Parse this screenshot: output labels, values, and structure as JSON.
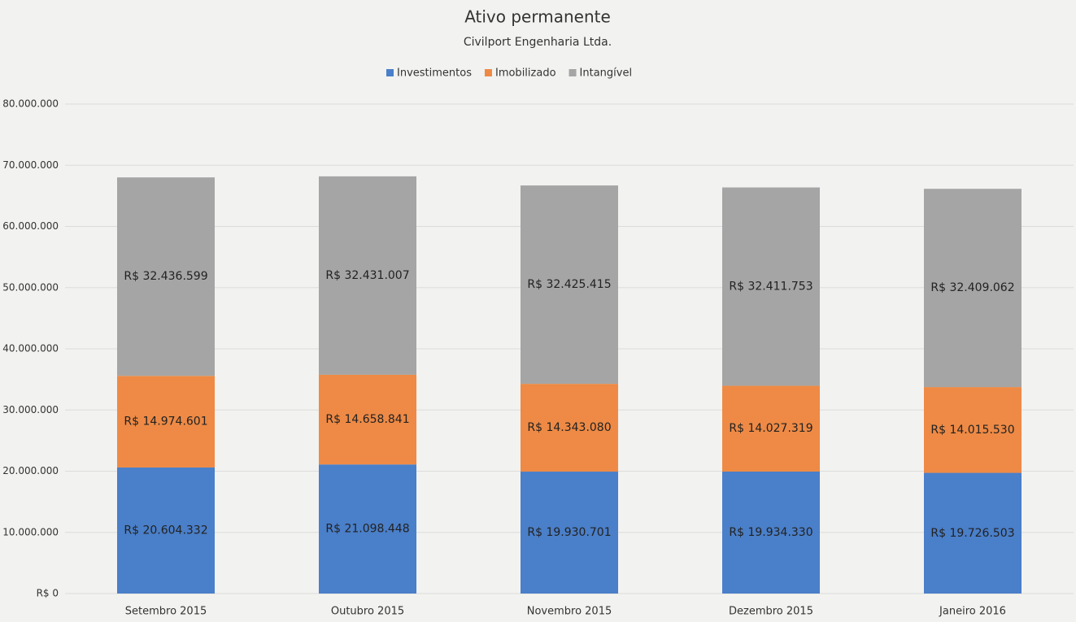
{
  "chart_data": {
    "type": "stacked_bar",
    "title": "Ativo permanente",
    "subtitle": "Civilport Engenharia Ltda.",
    "categories": [
      "Setembro 2015",
      "Outubro 2015",
      "Novembro 2015",
      "Dezembro 2015",
      "Janeiro 2016"
    ],
    "series": [
      {
        "name": "Investimentos",
        "color": "#4a7fc9",
        "values": [
          20604332,
          21098448,
          19930701,
          19934330,
          19726503
        ],
        "value_labels": [
          "R$ 20.604.332",
          "R$ 21.098.448",
          "R$ 19.930.701",
          "R$ 19.934.330",
          "R$ 19.726.503"
        ]
      },
      {
        "name": "Imobilizado",
        "color": "#ee8a45",
        "values": [
          14974601,
          14658841,
          14343080,
          14027319,
          14015530
        ],
        "value_labels": [
          "R$ 14.974.601",
          "R$ 14.658.841",
          "R$ 14.343.080",
          "R$ 14.027.319",
          "R$ 14.015.530"
        ]
      },
      {
        "name": "Intangível",
        "color": "#a5a5a5",
        "values": [
          32436599,
          32431007,
          32425415,
          32411753,
          32409062
        ],
        "value_labels": [
          "R$ 32.436.599",
          "R$ 32.431.007",
          "R$ 32.425.415",
          "R$ 32.411.753",
          "R$ 32.409.062"
        ]
      }
    ],
    "ylim": [
      0,
      80000000
    ],
    "yticks": [
      {
        "value": 0,
        "label": "R$ 0"
      },
      {
        "value": 10000000,
        "label": "R$ 10.000.000"
      },
      {
        "value": 20000000,
        "label": "R$ 20.000.000"
      },
      {
        "value": 30000000,
        "label": "R$ 30.000.000"
      },
      {
        "value": 40000000,
        "label": "R$ 40.000.000"
      },
      {
        "value": 50000000,
        "label": "R$ 50.000.000"
      },
      {
        "value": 60000000,
        "label": "R$ 60.000.000"
      },
      {
        "value": 70000000,
        "label": "R$ 70.000.000"
      },
      {
        "value": 80000000,
        "label": "R$ 80.000.000"
      }
    ],
    "grid": true,
    "legend": "top"
  }
}
